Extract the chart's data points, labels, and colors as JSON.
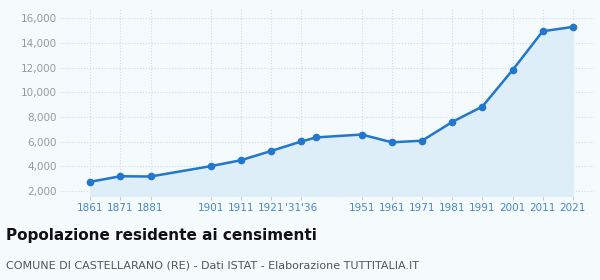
{
  "years": [
    1861,
    1871,
    1881,
    1901,
    1911,
    1921,
    1931,
    1936,
    1951,
    1961,
    1971,
    1981,
    1991,
    2001,
    2011,
    2021
  ],
  "population": [
    2750,
    3200,
    3180,
    4020,
    4500,
    5250,
    6020,
    6350,
    6580,
    5950,
    6080,
    7600,
    8850,
    11800,
    14950,
    15300
  ],
  "line_color": "#2277cc",
  "fill_color": "#ddeef8",
  "marker_color": "#2277cc",
  "background_color": "#f5fafd",
  "grid_color": "#ccddee",
  "grid_linestyle": "--",
  "title": "Popolazione residente ai censimenti",
  "subtitle": "COMUNE DI CASTELLARANO (RE) - Dati ISTAT - Elaborazione TUTTITALIA.IT",
  "title_fontsize": 11,
  "subtitle_fontsize": 8,
  "ylabel_ticks": [
    2000,
    4000,
    6000,
    8000,
    10000,
    12000,
    14000,
    16000
  ],
  "ylim": [
    1600,
    16800
  ],
  "xlim_left": 1851,
  "xlim_right": 2028,
  "tick_label_color_x": "#4488cc",
  "tick_label_color_y": "#999999",
  "tick_years": [
    1861,
    1871,
    1881,
    1901,
    1911,
    1921,
    1931,
    1951,
    1961,
    1971,
    1981,
    1991,
    2001,
    2011,
    2021
  ],
  "tick_labels": [
    "1861",
    "1871",
    "1881",
    "1901",
    "1911",
    "1921",
    "'31′36",
    "1951",
    "1961",
    "1971",
    "1981",
    "1991",
    "2001",
    "2011",
    "2021"
  ],
  "fill_baseline": 0
}
